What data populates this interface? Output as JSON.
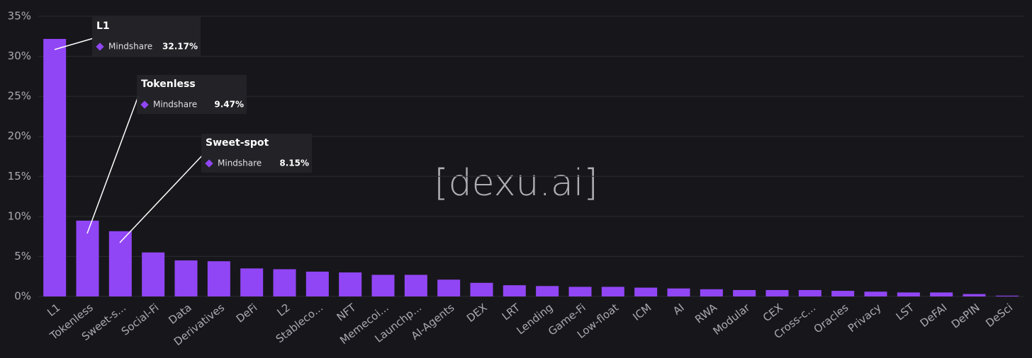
{
  "chart_data": {
    "type": "bar",
    "categories": [
      "L1",
      "Tokenless",
      "Sweet-s...",
      "Social-Fi",
      "Data",
      "Derivatives",
      "DeFi",
      "L2",
      "Stableco...",
      "NFT",
      "Memecoi...",
      "Launchp...",
      "AI-Agents",
      "DEX",
      "LRT",
      "Lending",
      "Game-Fi",
      "Low-float",
      "ICM",
      "AI",
      "RWA",
      "Modular",
      "CEX",
      "Cross-c...",
      "Oracles",
      "Privacy",
      "LST",
      "DeFAI",
      "DePIN",
      "DeSci"
    ],
    "series": [
      {
        "name": "Mindshare",
        "color": "#9146f5",
        "values": [
          32.17,
          9.47,
          8.15,
          5.5,
          4.5,
          4.4,
          3.5,
          3.4,
          3.1,
          3.0,
          2.7,
          2.7,
          2.1,
          1.7,
          1.4,
          1.3,
          1.2,
          1.2,
          1.1,
          1.0,
          0.9,
          0.8,
          0.8,
          0.8,
          0.7,
          0.6,
          0.5,
          0.5,
          0.3,
          0.1
        ],
        "value_labels": [
          "32.17%",
          "9.47%",
          "8.15%",
          null,
          null,
          null,
          null,
          null,
          null,
          null,
          null,
          null,
          null,
          null,
          null,
          null,
          null,
          null,
          null,
          null,
          null,
          null,
          null,
          null,
          null,
          null,
          null,
          null,
          null,
          null
        ]
      }
    ],
    "tooltip_titles": [
      "L1",
      "Tokenless",
      "Sweet-spot"
    ],
    "ylim": [
      0,
      35
    ],
    "yticks": [
      {
        "value": 0,
        "label": "0%"
      },
      {
        "value": 5,
        "label": "5%"
      },
      {
        "value": 10,
        "label": "10%"
      },
      {
        "value": 15,
        "label": "15%"
      },
      {
        "value": 20,
        "label": "20%"
      },
      {
        "value": 25,
        "label": "25%"
      },
      {
        "value": 30,
        "label": "30%"
      },
      {
        "value": 35,
        "label": "35%"
      }
    ],
    "grid": true,
    "watermark": "[dexu.ai]"
  }
}
